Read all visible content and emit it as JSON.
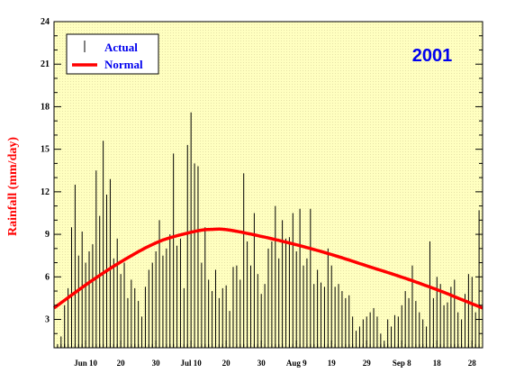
{
  "chart_data": {
    "type": "bar",
    "title": "2001",
    "ylabel": "Rainfall (mm/day)",
    "xlabel": "",
    "ylim": [
      1,
      24
    ],
    "xlim": [
      0,
      122
    ],
    "y_ticks": [
      3,
      6,
      9,
      12,
      15,
      18,
      21,
      24
    ],
    "x_ticks": [
      {
        "day": 9,
        "label": "Jun 10"
      },
      {
        "day": 19,
        "label": "20"
      },
      {
        "day": 29,
        "label": "30"
      },
      {
        "day": 39,
        "label": "Jul 10"
      },
      {
        "day": 49,
        "label": "20"
      },
      {
        "day": 59,
        "label": "30"
      },
      {
        "day": 69,
        "label": "Aug 9"
      },
      {
        "day": 79,
        "label": "19"
      },
      {
        "day": 89,
        "label": "29"
      },
      {
        "day": 99,
        "label": "Sep 8"
      },
      {
        "day": 109,
        "label": "18"
      },
      {
        "day": 119,
        "label": "28"
      }
    ],
    "legend": {
      "position": "top-left",
      "entries": [
        "Actual",
        "Normal"
      ]
    },
    "colors": {
      "actual": "#000000",
      "normal": "#ff0000",
      "background": "#ffffc0",
      "year": "#0000ee",
      "legend_text": "#0000ee"
    },
    "series": [
      {
        "name": "Actual",
        "values": [
          1.1,
          1.8,
          4.0,
          5.2,
          9.5,
          12.5,
          7.5,
          9.2,
          7.0,
          7.8,
          8.3,
          13.5,
          10.3,
          15.6,
          11.8,
          12.9,
          7.3,
          8.7,
          6.2,
          7.0,
          4.5,
          5.8,
          5.2,
          4.3,
          3.2,
          5.3,
          6.5,
          7.0,
          7.8,
          10.0,
          7.5,
          8.0,
          9.0,
          14.7,
          8.2,
          8.7,
          5.2,
          15.3,
          17.6,
          14.0,
          13.8,
          7.0,
          9.5,
          5.8,
          5.0,
          6.5,
          4.5,
          5.2,
          5.4,
          3.6,
          6.7,
          6.8,
          5.8,
          13.3,
          8.5,
          6.8,
          10.5,
          6.2,
          4.8,
          5.5,
          8.0,
          8.5,
          11.0,
          7.3,
          10.0,
          8.7,
          8.8,
          10.5,
          7.8,
          10.8,
          6.8,
          7.3,
          10.8,
          5.5,
          6.5,
          5.6,
          5.3,
          8.0,
          6.8,
          5.3,
          5.5,
          5.0,
          4.5,
          4.7,
          3.2,
          2.2,
          2.5,
          3.0,
          3.2,
          3.5,
          3.8,
          3.2,
          2.0,
          1.5,
          3.0,
          2.5,
          3.3,
          3.2,
          4.0,
          5.0,
          4.5,
          6.8,
          4.3,
          3.5,
          3.0,
          2.5,
          8.5,
          4.5,
          6.0,
          5.5,
          4.0,
          4.2,
          5.3,
          5.8,
          3.5,
          3.0,
          4.8,
          6.2,
          6.0,
          3.5,
          10.7
        ]
      },
      {
        "name": "Normal",
        "x": [
          0,
          10,
          20,
          30,
          40,
          45,
          50,
          60,
          70,
          80,
          90,
          100,
          110,
          122
        ],
        "values": [
          3.8,
          5.6,
          7.2,
          8.5,
          9.2,
          9.35,
          9.3,
          8.8,
          8.2,
          7.5,
          6.7,
          5.9,
          5.0,
          3.8
        ]
      }
    ]
  }
}
